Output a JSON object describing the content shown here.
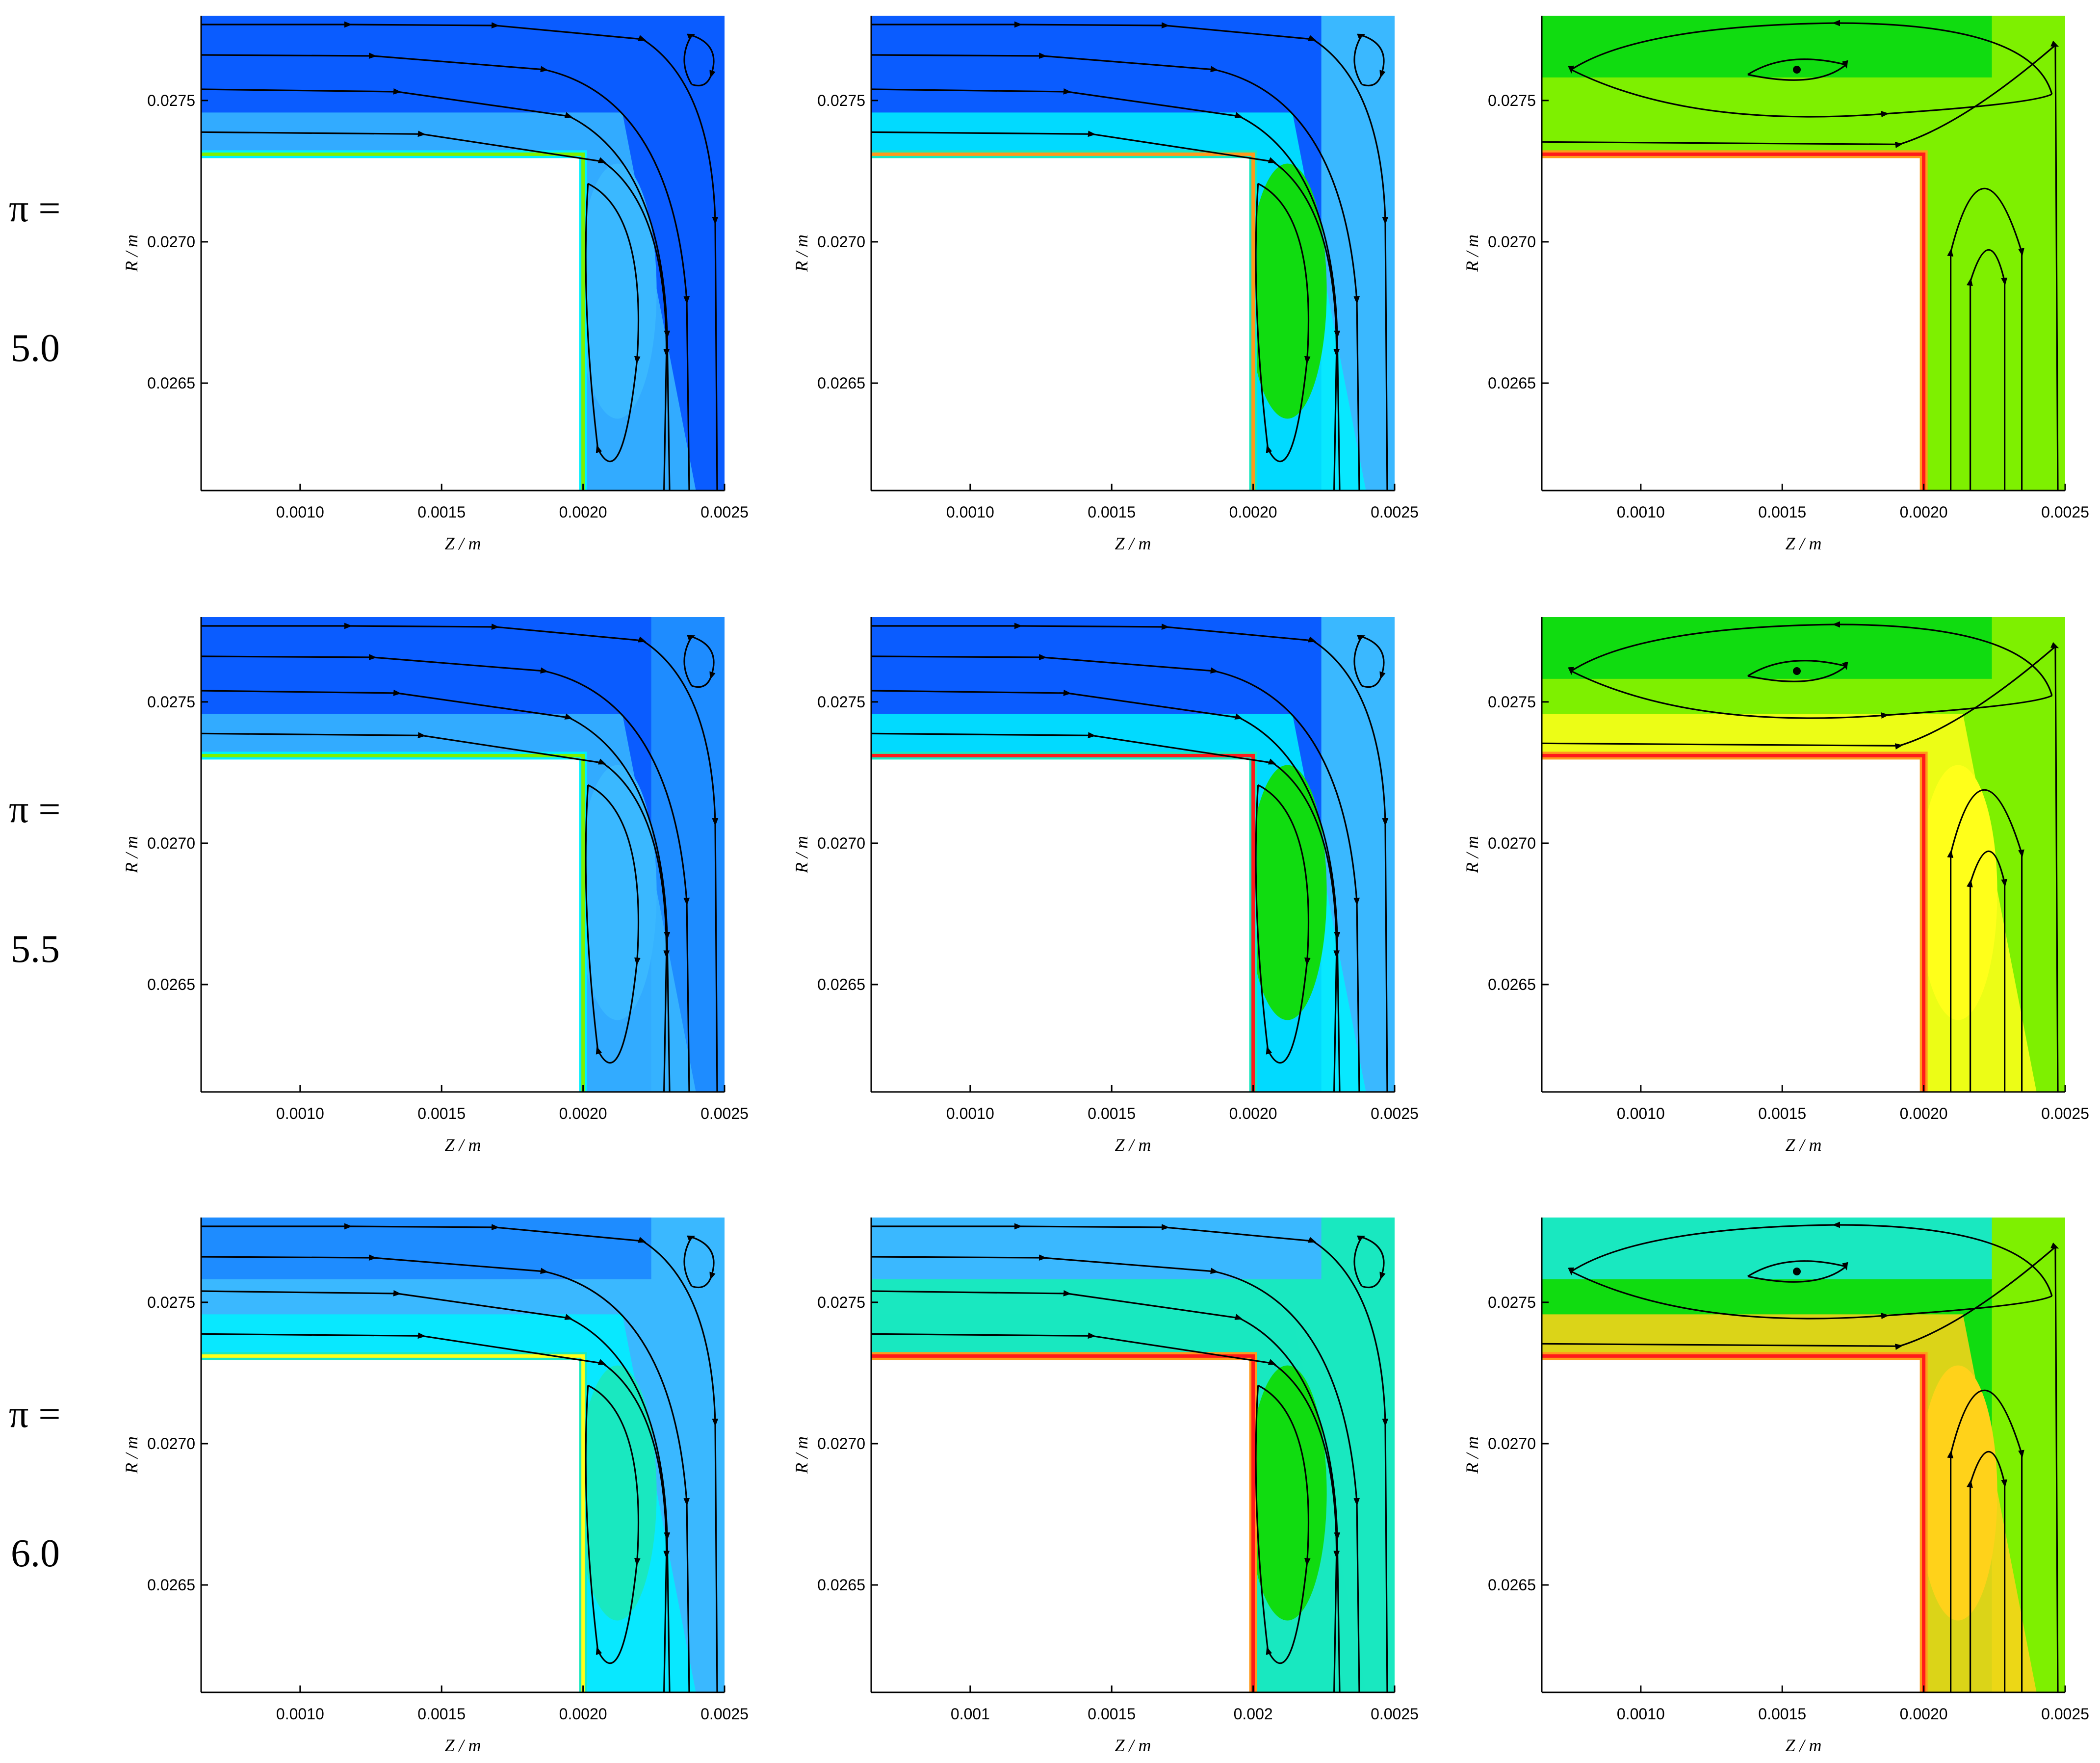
{
  "rows": [
    {
      "label_top": "π =",
      "label_value": "5.0"
    },
    {
      "label_top": "π =",
      "label_value": "5.5"
    },
    {
      "label_top": "π =",
      "label_value": "6.0"
    }
  ],
  "axes": {
    "x_label": "Z / m",
    "y_label": "R / m",
    "x_ticks": [
      "0.0010",
      "0.0015",
      "0.0020",
      "0.0025"
    ],
    "x_ticks_r3c2": [
      "0.001",
      "0.0015",
      "0.002",
      "0.0025"
    ],
    "y_ticks": [
      "0.0275",
      "0.0270",
      "0.0265"
    ]
  },
  "colors": {
    "blue": "#0a5cff",
    "mid_blue": "#1e8cff",
    "sky": "#3ab8ff",
    "cyan": "#00f0ff",
    "aqua": "#19e8c0",
    "green": "#10dc10",
    "lime": "#7ef000",
    "yellow": "#ffff1a",
    "gold": "#ffd21a",
    "orange": "#ff9a1a",
    "red": "#ff1a1a"
  },
  "panels": [
    {
      "id": "r1c1",
      "bg": "blue",
      "top": "blue",
      "right": "blue",
      "band": "sky",
      "vortex": "sky",
      "wall": "lime",
      "wall2": "cyan"
    },
    {
      "id": "r1c2",
      "bg": "blue",
      "top": "blue",
      "right": "sky",
      "band": "cyan",
      "vortex": "green",
      "wall": "orange",
      "wall2": "aqua"
    },
    {
      "id": "r1c3",
      "bg": "lime",
      "top": "green",
      "right": "lime",
      "band": "lime",
      "vortex": "lime",
      "wall": "red",
      "wall2": "orange"
    },
    {
      "id": "r2c1",
      "bg": "blue",
      "top": "blue",
      "right": "mid_blue",
      "band": "sky",
      "vortex": "sky",
      "wall": "lime",
      "wall2": "cyan"
    },
    {
      "id": "r2c2",
      "bg": "blue",
      "top": "blue",
      "right": "sky",
      "band": "cyan",
      "vortex": "green",
      "wall": "red",
      "wall2": "aqua"
    },
    {
      "id": "r2c3",
      "bg": "lime",
      "top": "green",
      "right": "lime",
      "band": "yellow",
      "vortex": "yellow",
      "wall": "red",
      "wall2": "orange"
    },
    {
      "id": "r3c1",
      "bg": "sky",
      "top": "mid_blue",
      "right": "sky",
      "band": "cyan",
      "vortex": "aqua",
      "wall": "yellow",
      "wall2": "aqua"
    },
    {
      "id": "r3c2",
      "bg": "aqua",
      "top": "sky",
      "right": "aqua",
      "band": "aqua",
      "vortex": "green",
      "wall": "red",
      "wall2": "orange"
    },
    {
      "id": "r3c3",
      "bg": "green",
      "top": "aqua",
      "right": "lime",
      "band": "gold",
      "vortex": "gold",
      "wall": "red",
      "wall2": "orange"
    }
  ]
}
